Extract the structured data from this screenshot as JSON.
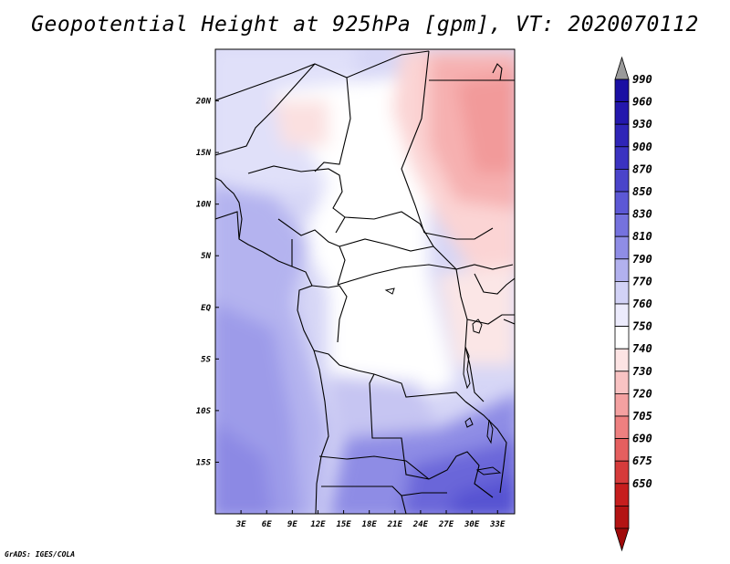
{
  "title": "Geopotential Height at 925hPa [gpm], VT: 2020070112",
  "credit": "GrADS: IGES/COLA",
  "map": {
    "x_ticks": [
      "3E",
      "6E",
      "9E",
      "12E",
      "15E",
      "18E",
      "21E",
      "24E",
      "27E",
      "30E",
      "33E"
    ],
    "y_ticks": [
      "20N",
      "15N",
      "10N",
      "5N",
      "EQ",
      "5S",
      "10S",
      "15S"
    ],
    "x_range_deg_east": [
      0,
      35
    ],
    "y_range_deg_north": [
      -20,
      25
    ]
  },
  "colorbar": {
    "labels": [
      "990",
      "960",
      "930",
      "900",
      "870",
      "850",
      "830",
      "810",
      "790",
      "770",
      "760",
      "750",
      "740",
      "730",
      "720",
      "705",
      "690",
      "675",
      "650"
    ],
    "colors": [
      "#9a9a9a",
      "#1a0fa3",
      "#2418ad",
      "#2f25b7",
      "#3b33c1",
      "#4a44ca",
      "#5c58d5",
      "#7572de",
      "#8f8de6",
      "#b2b1ee",
      "#d2d2f6",
      "#ecebfc",
      "#ffffff",
      "#fde4e4",
      "#f9c3c3",
      "#f4a1a1",
      "#ee8080",
      "#e55f5f",
      "#d63b3b",
      "#c61e1e",
      "#b31313",
      "#a00a0a"
    ]
  }
}
